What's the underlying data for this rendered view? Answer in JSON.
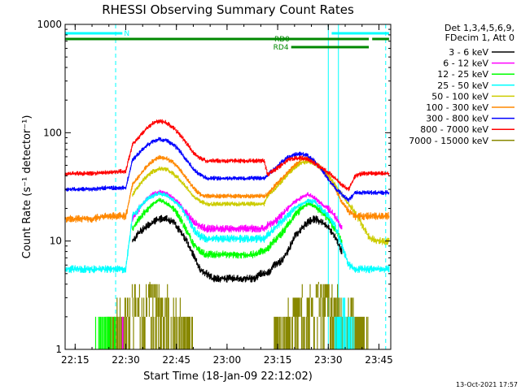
{
  "chart_data": {
    "type": "line",
    "title": "RHESSI Observing Summary Count Rates",
    "xlabel": "Start Time (18-Jan-09 22:12:02)",
    "ylabel": "Count Rate (s⁻¹ detector⁻¹)",
    "y_scale": "log",
    "ylim": [
      1,
      1000
    ],
    "xlim": [
      "22:12:02",
      "23:48:30"
    ],
    "x_ticks": [
      "22:15",
      "22:30",
      "22:45",
      "23:00",
      "23:15",
      "23:30",
      "23:45"
    ],
    "y_ticks": [
      "1",
      "10",
      "100",
      "1000"
    ],
    "legend_header": [
      "Det 1,3,4,5,6,9,",
      "FDecim 1, Att 0"
    ],
    "legend_position": "top-right",
    "timestamp": "13-Oct-2021 17:57",
    "x": [
      "22:12",
      "22:16",
      "22:20",
      "22:24",
      "22:26",
      "22:28",
      "22:30",
      "22:32",
      "22:34",
      "22:36",
      "22:38",
      "22:40",
      "22:42",
      "22:44",
      "22:46",
      "22:48",
      "22:50",
      "22:52",
      "22:54",
      "22:56",
      "22:58",
      "23:00",
      "23:02",
      "23:04",
      "23:06",
      "23:08",
      "23:10",
      "23:11",
      "23:12",
      "23:14",
      "23:16",
      "23:18",
      "23:20",
      "23:22",
      "23:24",
      "23:26",
      "23:28",
      "23:30",
      "23:32",
      "23:34",
      "23:36",
      "23:38",
      "23:40",
      "23:42",
      "23:44",
      "23:46",
      "23:48"
    ],
    "series": [
      {
        "name": "3 - 6 keV",
        "color": "#000000",
        "values": [
          null,
          null,
          null,
          null,
          null,
          null,
          null,
          10,
          12,
          13.5,
          15,
          16,
          16,
          15,
          12.5,
          10,
          7.5,
          5.5,
          5,
          4.5,
          4.5,
          4.5,
          4.5,
          4.5,
          4.5,
          4.5,
          5,
          5,
          5,
          6,
          6.5,
          8,
          11,
          13,
          15,
          16,
          15,
          13.5,
          11,
          8,
          null,
          null,
          null,
          null,
          null,
          null,
          null
        ]
      },
      {
        "name": "6 - 12 keV",
        "color": "#ff00ff",
        "values": [
          null,
          null,
          null,
          null,
          null,
          null,
          null,
          16,
          20,
          24,
          27,
          28.5,
          27.5,
          25,
          22,
          18,
          15,
          13.5,
          13,
          13,
          13,
          13,
          13,
          13,
          13,
          13,
          13,
          13,
          14,
          15,
          17,
          20,
          23,
          25,
          27,
          25,
          22,
          20,
          17,
          13,
          null,
          null,
          null,
          null,
          null,
          null,
          null
        ]
      },
      {
        "name": "12 - 25 keV",
        "color": "#00ff00",
        "values": [
          null,
          null,
          null,
          null,
          null,
          null,
          null,
          13,
          16,
          19,
          22,
          24,
          22.5,
          20,
          16.5,
          12.5,
          9.5,
          8,
          7.5,
          7.5,
          7.5,
          7.5,
          7.5,
          7.5,
          7.5,
          7.5,
          8,
          8,
          8.5,
          10,
          11.5,
          14,
          17,
          20,
          22,
          21,
          18.5,
          16,
          13,
          10,
          null,
          null,
          null,
          null,
          null,
          null,
          null
        ]
      },
      {
        "name": "25 - 50 keV",
        "color": "#00ffff",
        "values": [
          5.5,
          5.5,
          5.5,
          5.5,
          5.5,
          5.5,
          5.5,
          17,
          20,
          24,
          26,
          27.5,
          26.5,
          24,
          21,
          17,
          13,
          11,
          10.5,
          10.5,
          10.5,
          10.5,
          10.5,
          10.5,
          10.5,
          10.5,
          10.5,
          10.5,
          11.5,
          13,
          15,
          17,
          20,
          22,
          23.5,
          23,
          20,
          17,
          14,
          9,
          6,
          5.5,
          5.5,
          5.5,
          5.5,
          5.5,
          5.5
        ]
      },
      {
        "name": "50 - 100 keV",
        "color": "#cccc00",
        "values": [
          null,
          null,
          null,
          null,
          null,
          null,
          null,
          27,
          33,
          39,
          44,
          47,
          46,
          42,
          37,
          31,
          26,
          23.5,
          22,
          22,
          22,
          22,
          22,
          22,
          22,
          22,
          22,
          22,
          26,
          30,
          35,
          41,
          48,
          53,
          54,
          52,
          46,
          40,
          33,
          27,
          22,
          18,
          14,
          11,
          10,
          10,
          10
        ]
      },
      {
        "name": "100 - 300 keV",
        "color": "#ff8800",
        "values": [
          16,
          16,
          16,
          17,
          17,
          17,
          17,
          33,
          40,
          48,
          55,
          59,
          58,
          53,
          46,
          38,
          31,
          27,
          26,
          26,
          26,
          26,
          26,
          26,
          26,
          26,
          26,
          26,
          27,
          32,
          37,
          43,
          50,
          56,
          58,
          54,
          47,
          38,
          31,
          23,
          19,
          17,
          17,
          17,
          17,
          17,
          17
        ]
      },
      {
        "name": "300 - 800 keV",
        "color": "#0000ff",
        "values": [
          30,
          30,
          30,
          31,
          31,
          31,
          31,
          56,
          65,
          75,
          83,
          87,
          85,
          78,
          68,
          56,
          46,
          41,
          38,
          38,
          38,
          38,
          38,
          38,
          38,
          38,
          38,
          38,
          41,
          46,
          53,
          59,
          63,
          64,
          61,
          54,
          46,
          37,
          31,
          27,
          24,
          28,
          28,
          28,
          28,
          28,
          28
        ]
      },
      {
        "name": "800 - 7000 keV",
        "color": "#ff0000",
        "values": [
          42,
          42,
          42,
          43,
          43,
          44,
          44,
          78,
          92,
          108,
          122,
          128,
          124,
          112,
          96,
          80,
          66,
          58,
          55,
          55,
          55,
          55,
          55,
          55,
          55,
          55,
          55,
          55,
          41,
          45,
          50,
          56,
          58,
          59,
          57,
          52,
          47,
          43,
          38,
          33,
          30,
          40,
          42,
          42,
          42,
          42,
          42
        ]
      },
      {
        "name": "7000 - 15000 keV",
        "color": "#888800",
        "values": [
          null,
          null,
          null,
          null,
          null,
          null,
          null,
          null,
          null,
          null,
          null,
          null,
          null,
          null,
          null,
          null,
          null,
          null,
          null,
          null,
          null,
          null,
          null,
          null,
          null,
          null,
          null,
          null,
          null,
          null,
          null,
          null,
          null,
          null,
          null,
          null,
          null,
          null,
          null,
          null,
          null,
          null,
          null,
          null,
          null,
          null,
          null
        ]
      }
    ],
    "low_rate_noise_series": [
      "6 - 12 keV",
      "12 - 25 keV",
      "25 - 50 keV",
      "7000 - 15000 keV"
    ],
    "flag_bars": [
      {
        "label": "N",
        "color": "#00ffff",
        "ranges": [
          [
            "22:12",
            "22:29"
          ],
          [
            "23:31",
            "23:48"
          ]
        ]
      },
      {
        "label": "RD0",
        "color": "#008800",
        "ranges": [
          [
            "22:12",
            "23:42"
          ],
          [
            "23:43",
            "23:48"
          ]
        ]
      },
      {
        "label": "RD4",
        "color": "#008800",
        "ranges": [
          [
            "23:19",
            "23:42"
          ]
        ]
      }
    ],
    "vertical_markers": [
      {
        "time": "22:27",
        "style": "dashed",
        "color": "#00ffff"
      },
      {
        "time": "23:30",
        "style": "solid",
        "color": "#00ffff"
      },
      {
        "time": "23:33",
        "style": "solid",
        "color": "#00ffff"
      },
      {
        "time": "23:47",
        "style": "dashed",
        "color": "#00ffff"
      }
    ]
  }
}
